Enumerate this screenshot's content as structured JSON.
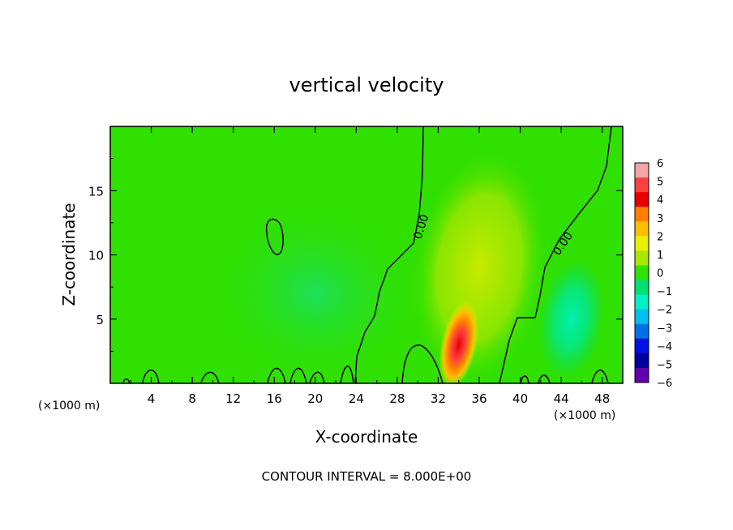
{
  "chart_data": {
    "type": "heatmap",
    "title": "vertical velocity",
    "xlabel": "X-coordinate",
    "ylabel": "Z-coordinate",
    "x_unit_left": "(×1000 m)",
    "x_unit_right": "(×1000 m)",
    "xlim": [
      0,
      50
    ],
    "ylim": [
      0,
      20
    ],
    "x_ticks": [
      4,
      8,
      12,
      16,
      20,
      24,
      28,
      32,
      36,
      40,
      44,
      48
    ],
    "y_ticks": [
      5,
      10,
      15
    ],
    "footer": "CONTOUR INTERVAL = 8.000E+00",
    "contour_labels": [
      "0.00",
      "0.00"
    ],
    "colorbar": {
      "ticks": [
        "6",
        "5",
        "4",
        "3",
        "2",
        "1",
        "0",
        "−1",
        "−2",
        "−3",
        "−4",
        "−5",
        "−6"
      ],
      "colors": [
        "#f2a6a6",
        "#ff4040",
        "#e80000",
        "#ff8000",
        "#ffbf00",
        "#e8f000",
        "#a8e800",
        "#30e000",
        "#00e070",
        "#00f0c8",
        "#00c0f0",
        "#0070e8",
        "#0010e8",
        "#0000a0",
        "#6000b0"
      ]
    },
    "features": [
      {
        "kind": "updraft_core",
        "x": 34,
        "z": 3,
        "value": 5.5
      },
      {
        "kind": "updraft_plume",
        "x": 36,
        "z": 9,
        "value": 1.2
      },
      {
        "kind": "downdraft",
        "x": 45,
        "z": 5,
        "value": -1.5
      },
      {
        "kind": "weak_downdraft",
        "x": 20,
        "z": 7,
        "value": -0.6
      }
    ]
  }
}
